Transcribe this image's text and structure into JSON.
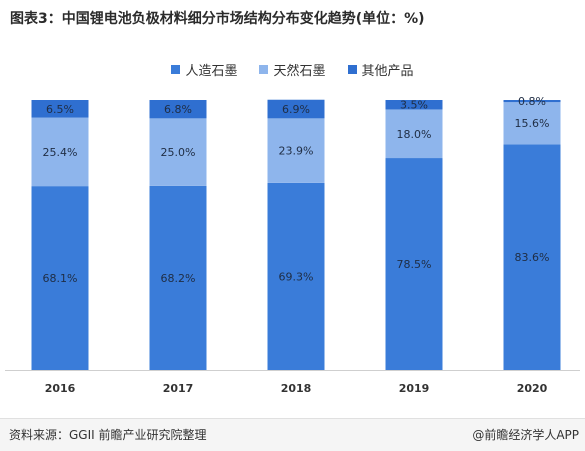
{
  "title": "图表3：中国锂电池负极材料细分市场结构分布变化趋势(单位：%)",
  "source": "资料来源：GGII 前瞻产业研究院整理",
  "brand": "@前瞻经济学人APP",
  "colors": {
    "artificial": "#3a7cd9",
    "natural": "#8eb5ec",
    "other": "#2f6fd0"
  },
  "chart_data": {
    "type": "bar",
    "stacked": true,
    "percent_stacked": true,
    "categories": [
      "2016",
      "2017",
      "2018",
      "2019",
      "2020"
    ],
    "legend_position": "top",
    "grid": false,
    "ylim": [
      0,
      100
    ],
    "series": [
      {
        "key": "artificial",
        "name": "人造石墨",
        "values": [
          68.1,
          68.2,
          69.3,
          78.5,
          83.6
        ],
        "labels": [
          "68.1%",
          "68.2%",
          "69.3%",
          "78.5%",
          "83.6%"
        ]
      },
      {
        "key": "natural",
        "name": "天然石墨",
        "values": [
          25.4,
          25.0,
          23.9,
          18.0,
          15.6
        ],
        "labels": [
          "25.4%",
          "25.0%",
          "23.9%",
          "18.0%",
          "15.6%"
        ]
      },
      {
        "key": "other",
        "name": "其他产品",
        "values": [
          6.5,
          6.8,
          6.9,
          3.5,
          0.8
        ],
        "labels": [
          "6.5%",
          "6.8%",
          "6.9%",
          "3.5%",
          "0.8%"
        ]
      }
    ]
  }
}
